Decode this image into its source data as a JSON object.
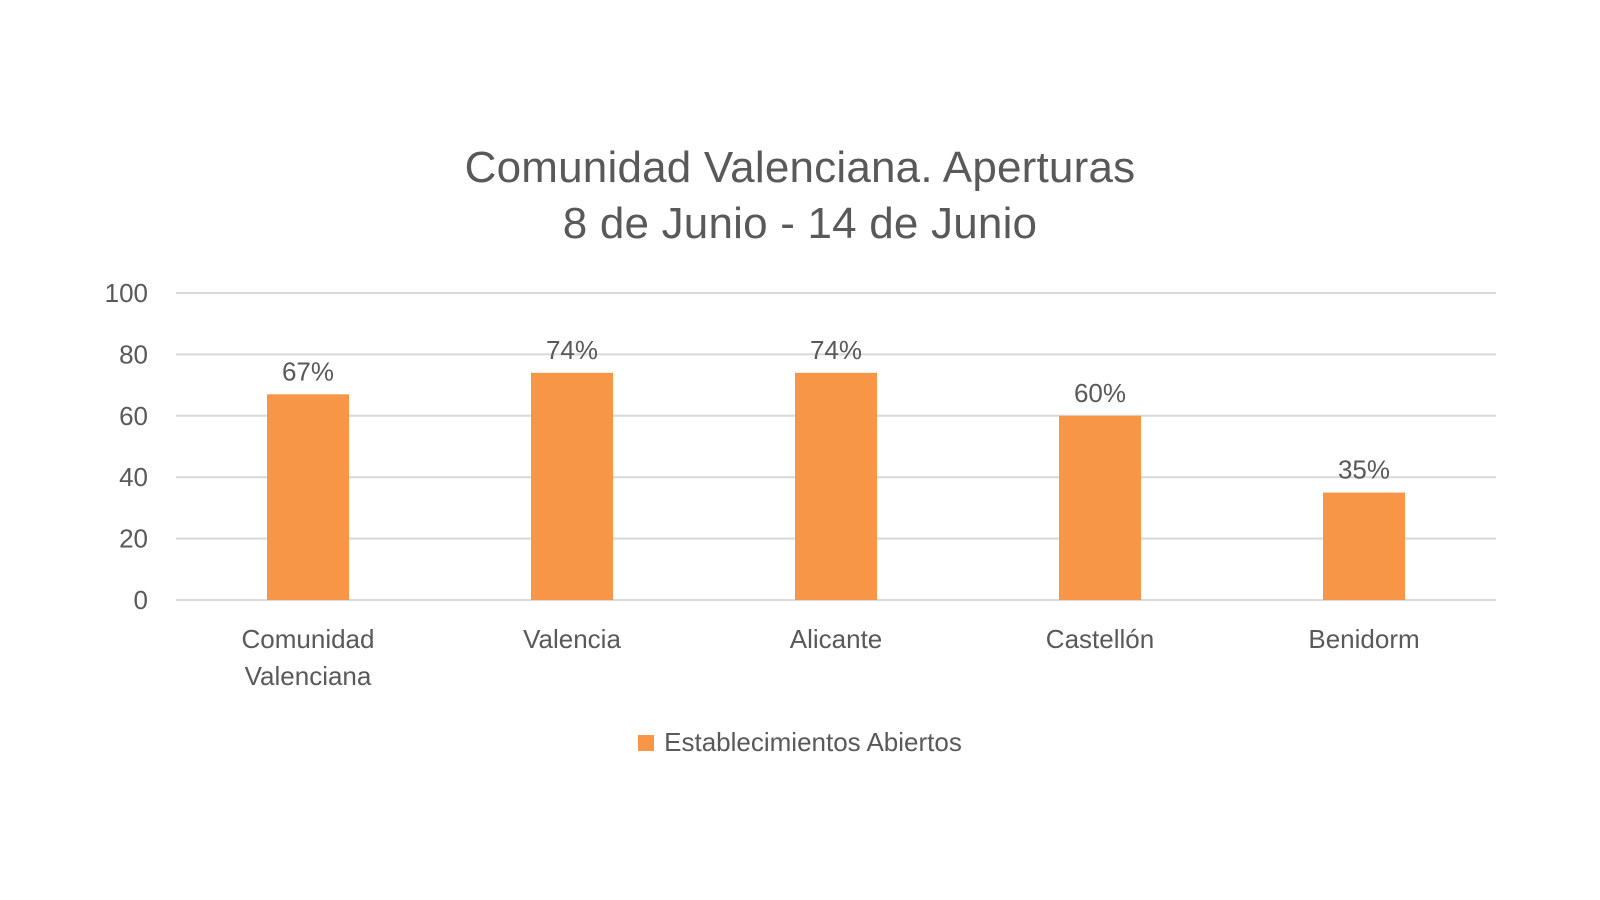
{
  "chart_data": {
    "type": "bar",
    "title_lines": [
      "Comunidad Valenciana. Aperturas",
      "8 de Junio - 14 de Junio"
    ],
    "categories": [
      [
        "Comunidad",
        "Valenciana"
      ],
      [
        "Valencia"
      ],
      [
        "Alicante"
      ],
      [
        "Castellón"
      ],
      [
        "Benidorm"
      ]
    ],
    "series": [
      {
        "name": "Establecimientos Abiertos",
        "values": [
          67,
          74,
          74,
          60,
          35
        ],
        "data_labels": [
          "67%",
          "74%",
          "74%",
          "60%",
          "35%"
        ],
        "color": "#F79646"
      }
    ],
    "y_ticks": [
      "0",
      "20",
      "40",
      "60",
      "80",
      "100"
    ],
    "ylim": [
      0,
      100
    ],
    "grid": true,
    "legend_position": "bottom",
    "colors": {
      "gridline": "#D9D9D9",
      "text": "#595959",
      "bar": "#F79646"
    }
  }
}
